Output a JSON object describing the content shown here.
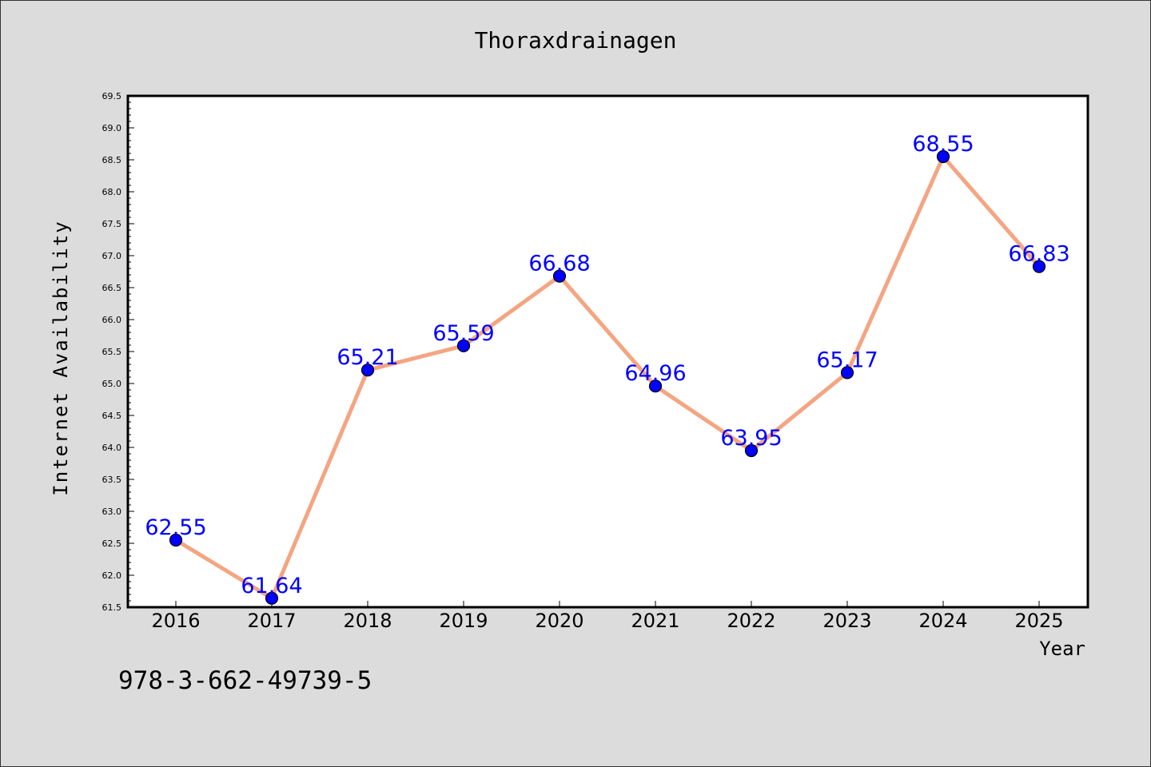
{
  "footer_text": "978-3-662-49739-5",
  "chart_data": {
    "type": "line",
    "title": "Thoraxdrainagen",
    "xlabel": "Year",
    "ylabel": "Internet Availability",
    "categories": [
      "2016",
      "2017",
      "2018",
      "2019",
      "2020",
      "2021",
      "2022",
      "2023",
      "2024",
      "2025"
    ],
    "series": [
      {
        "values": [
          62.55,
          61.64,
          65.21,
          65.59,
          66.68,
          64.96,
          63.95,
          65.17,
          68.55,
          66.83
        ],
        "data_labels": [
          "62.55",
          "61.64",
          "65.21",
          "65.59",
          "66.68",
          "64.96",
          "63.95",
          "65.17",
          "68.55",
          "66.83"
        ],
        "line_color": "#f4a582",
        "marker_color": "#0000ff"
      }
    ],
    "ylim": [
      61.5,
      69.5
    ],
    "yticks": [
      "61.5",
      "62.0",
      "62.5",
      "63.0",
      "63.5",
      "64.0",
      "64.5",
      "65.0",
      "65.5",
      "66.0",
      "66.5",
      "67.0",
      "67.5",
      "68.0",
      "68.5",
      "69.0",
      "69.5"
    ],
    "grid": false,
    "legend": "none",
    "colors": {
      "background": "#dcdcdc",
      "plot_background": "#ffffff",
      "label_color": "#0000ff"
    }
  }
}
